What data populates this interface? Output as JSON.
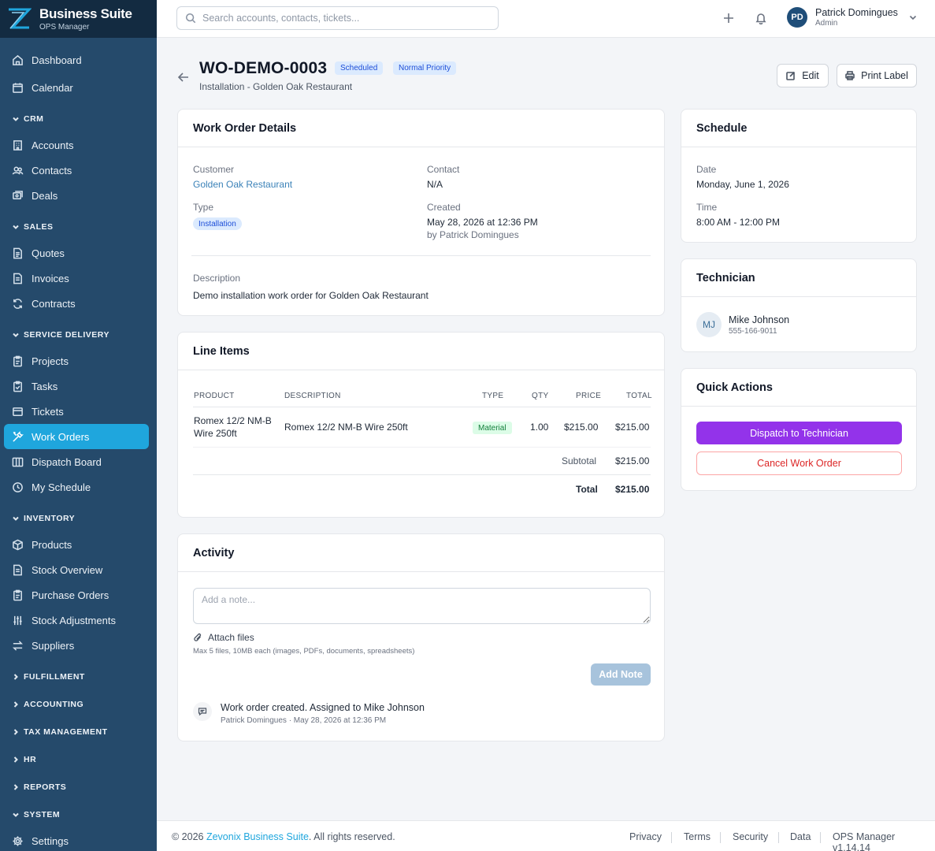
{
  "brand": {
    "name": "Business Suite",
    "subtitle": "OPS Manager"
  },
  "colors": {
    "sidebar": "#254a6b",
    "accent": "#1fa6dd",
    "purple": "#9333ea",
    "danger": "#dc2626"
  },
  "sidebar": {
    "top": [
      {
        "label": "Dashboard",
        "icon": "home-icon"
      },
      {
        "label": "Calendar",
        "icon": "calendar-icon"
      }
    ],
    "sections": {
      "crm": "CRM",
      "sales": "SALES",
      "service": "SERVICE DELIVERY",
      "inventory": "INVENTORY",
      "fulfillment": "FULFILLMENT",
      "accounting": "ACCOUNTING",
      "tax": "TAX MANAGEMENT",
      "hr": "HR",
      "reports": "REPORTS",
      "system": "SYSTEM"
    },
    "crm_items": [
      "Accounts",
      "Contacts",
      "Deals"
    ],
    "sales_items": [
      "Quotes",
      "Invoices",
      "Contracts"
    ],
    "service_items": [
      "Projects",
      "Tasks",
      "Tickets",
      "Work Orders",
      "Dispatch Board",
      "My Schedule"
    ],
    "inventory_items": [
      "Products",
      "Stock Overview",
      "Purchase Orders",
      "Stock Adjustments",
      "Suppliers"
    ],
    "system_items": [
      "Settings"
    ]
  },
  "topbar": {
    "search_placeholder": "Search accounts, contacts, tickets...",
    "user": {
      "initials": "PD",
      "name": "Patrick Domingues",
      "role": "Admin"
    }
  },
  "header": {
    "title": "WO-DEMO-0003",
    "status": "Scheduled",
    "priority": "Normal Priority",
    "subtitle": "Installation - Golden Oak Restaurant",
    "edit": "Edit",
    "print": "Print Label"
  },
  "details": {
    "heading": "Work Order Details",
    "customer_label": "Customer",
    "customer": "Golden Oak Restaurant",
    "contact_label": "Contact",
    "contact": "N/A",
    "type_label": "Type",
    "type": "Installation",
    "created_label": "Created",
    "created": "May 28, 2026 at 12:36 PM",
    "created_by": "by Patrick Domingues",
    "description_label": "Description",
    "description": "Demo installation work order for Golden Oak Restaurant"
  },
  "line_items": {
    "heading": "Line Items",
    "columns": {
      "product": "PRODUCT",
      "description": "DESCRIPTION",
      "type": "TYPE",
      "qty": "QTY",
      "price": "PRICE",
      "total": "TOTAL"
    },
    "rows": [
      {
        "product_1": "Romex 12/2 NM-B",
        "product_2": "Wire 250ft",
        "description": "Romex 12/2 NM-B Wire 250ft",
        "type": "Material",
        "qty": "1.00",
        "price": "$215.00",
        "total": "$215.00"
      }
    ],
    "subtotal_label": "Subtotal",
    "subtotal": "$215.00",
    "total_label": "Total",
    "total": "$215.00"
  },
  "activity": {
    "heading": "Activity",
    "note_placeholder": "Add a note...",
    "attach": "Attach files",
    "attach_hint": "Max 5 files, 10MB each (images, PDFs, documents, spreadsheets)",
    "add_note": "Add Note",
    "entries": [
      {
        "text": "Work order created. Assigned to Mike Johnson",
        "meta": "Patrick Domingues · May 28, 2026 at 12:36 PM"
      }
    ]
  },
  "schedule": {
    "heading": "Schedule",
    "date_label": "Date",
    "date": "Monday, June 1, 2026",
    "time_label": "Time",
    "time": "8:00 AM - 12:00 PM"
  },
  "technician": {
    "heading": "Technician",
    "initials": "MJ",
    "name": "Mike Johnson",
    "phone": "555-166-9011"
  },
  "quick_actions": {
    "heading": "Quick Actions",
    "dispatch": "Dispatch to Technician",
    "cancel": "Cancel Work Order"
  },
  "footer": {
    "copy_prefix": "© 2026 ",
    "company": "Zevonix Business Suite",
    "copy_suffix": ". All rights reserved.",
    "links": [
      "Privacy",
      "Terms",
      "Security",
      "Data"
    ],
    "version": "OPS Manager v1.14.14"
  }
}
